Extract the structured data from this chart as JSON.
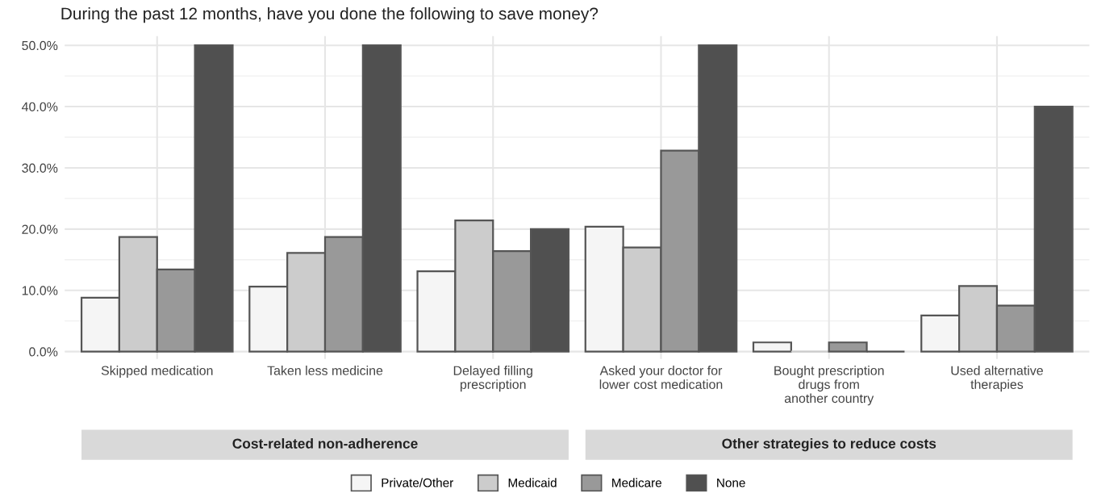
{
  "chart_data": {
    "type": "bar",
    "title": "During the past 12 months, have you done the following to save money?",
    "categories": [
      "Skipped medication",
      "Taken less medicine",
      "Delayed filling\nprescription",
      "Asked your doctor for\nlower cost medication",
      "Bought prescription\ndrugs from\nanother country",
      "Used alternative\ntherapies"
    ],
    "series": [
      {
        "name": "Private/Other",
        "color": "#f5f5f5",
        "values": [
          8.8,
          10.6,
          13.1,
          20.4,
          1.5,
          5.9
        ]
      },
      {
        "name": "Medicaid",
        "color": "#cccccc",
        "values": [
          18.7,
          16.1,
          21.4,
          17.0,
          0,
          10.7
        ]
      },
      {
        "name": "Medicare",
        "color": "#999999",
        "values": [
          13.4,
          18.7,
          16.4,
          32.8,
          1.5,
          7.5
        ]
      },
      {
        "name": "None",
        "color": "#505050",
        "values": [
          50,
          50,
          20.0,
          50,
          0,
          40.0
        ]
      }
    ],
    "annotations": [
      "Cost-related non-adherence",
      "Other strategies to reduce costs"
    ],
    "ylim": [
      -1.2,
      51.5
    ],
    "yticks": [
      {
        "value": 0,
        "label": "0.0%"
      },
      {
        "value": 10,
        "label": "10.0%"
      },
      {
        "value": 20,
        "label": "20.0%"
      },
      {
        "value": 30,
        "label": "30.0%"
      },
      {
        "value": 40,
        "label": "40.0%"
      },
      {
        "value": 50,
        "label": "50.0%"
      }
    ],
    "grid": true,
    "legend": "bottom"
  }
}
